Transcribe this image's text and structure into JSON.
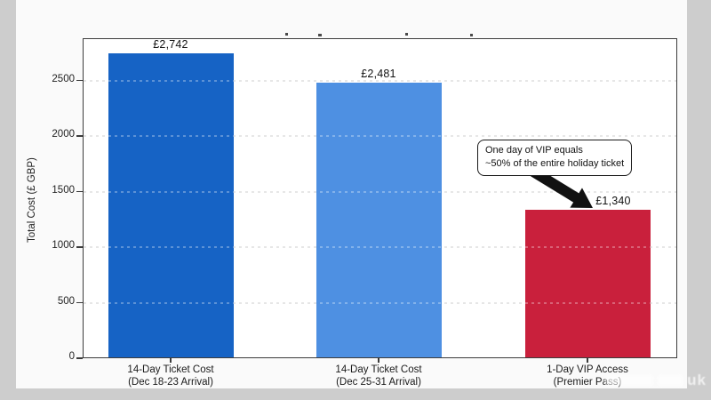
{
  "page": {
    "background_color": "#cdcdcd",
    "card_color": "#fafafa"
  },
  "chart_data": {
    "type": "bar",
    "title": "",
    "xlabel": "",
    "ylabel": "Total Cost (£ GBP)",
    "ylim": [
      0,
      2880
    ],
    "ytick_values": [
      0,
      500,
      1000,
      1500,
      2000,
      2500
    ],
    "grid": "horizontal dashed",
    "legend": "none",
    "bars": [
      {
        "category_line1": "14-Day Ticket Cost",
        "category_line2": "(Dec 18-23 Arrival)",
        "value": 2742,
        "value_label": "£2,742",
        "color": "#1663C5"
      },
      {
        "category_line1": "14-Day Ticket Cost",
        "category_line2": "(Dec 25-31 Arrival)",
        "value": 2481,
        "value_label": "£2,481",
        "color": "#4E90E2"
      },
      {
        "category_line1": "1-Day VIP Access",
        "category_line2": "(Premier Pass)",
        "value": 1340,
        "value_label": "£1,340",
        "color": "#C9203C"
      }
    ],
    "annotation": {
      "text_line1": "One day of VIP equals",
      "text_line2": "~50% of the entire holiday ticket",
      "points_to": "1-Day VIP Access bar",
      "box_color": "#ffffff",
      "border_color": "#1a1a1a",
      "arrow_color": "#111111"
    }
  },
  "watermark": {
    "text": "uk"
  }
}
